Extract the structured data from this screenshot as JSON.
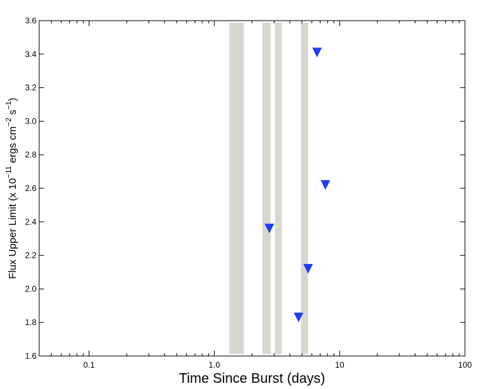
{
  "chart_data": {
    "type": "scatter",
    "marker": "triangle-down",
    "x_scale": "log",
    "xlim": [
      0.04,
      100
    ],
    "ylim": [
      1.6,
      3.6
    ],
    "xlabel": "Time Since Burst (days)",
    "ylabel": {
      "base": "Flux Upper Limit (x 10",
      "exp1": "−11",
      "mid": " ergs cm",
      "exp2": "−2",
      "mid2": " s",
      "exp3": "−1",
      "end": ")"
    },
    "x_ticks": [
      {
        "value": 0.1,
        "label": "0.1"
      },
      {
        "value": 1,
        "label": "1.0"
      },
      {
        "value": 10,
        "label": "10"
      },
      {
        "value": 100,
        "label": "100"
      }
    ],
    "y_ticks": [
      {
        "value": 1.6,
        "label": "1.6"
      },
      {
        "value": 1.8,
        "label": "1.8"
      },
      {
        "value": 2.0,
        "label": "2.0"
      },
      {
        "value": 2.2,
        "label": "2.2"
      },
      {
        "value": 2.4,
        "label": "2.4"
      },
      {
        "value": 2.6,
        "label": "2.6"
      },
      {
        "value": 2.8,
        "label": "2.8"
      },
      {
        "value": 3.0,
        "label": "3.0"
      },
      {
        "value": 3.2,
        "label": "3.2"
      },
      {
        "value": 3.4,
        "label": "3.4"
      },
      {
        "value": 3.6,
        "label": "3.6"
      }
    ],
    "shaded_intervals": [
      {
        "x_start": 1.32,
        "x_end": 1.72
      },
      {
        "x_start": 2.42,
        "x_end": 2.82
      },
      {
        "x_start": 3.05,
        "x_end": 3.45
      },
      {
        "x_start": 4.9,
        "x_end": 5.6
      }
    ],
    "points": [
      {
        "x": 2.75,
        "y": 2.36
      },
      {
        "x": 4.7,
        "y": 1.83
      },
      {
        "x": 5.6,
        "y": 2.12
      },
      {
        "x": 6.6,
        "y": 3.41
      },
      {
        "x": 7.7,
        "y": 2.62
      }
    ],
    "colors": {
      "marker": "#1f3cf5",
      "shade": "#d6d8cf",
      "axis": "#000000"
    }
  }
}
